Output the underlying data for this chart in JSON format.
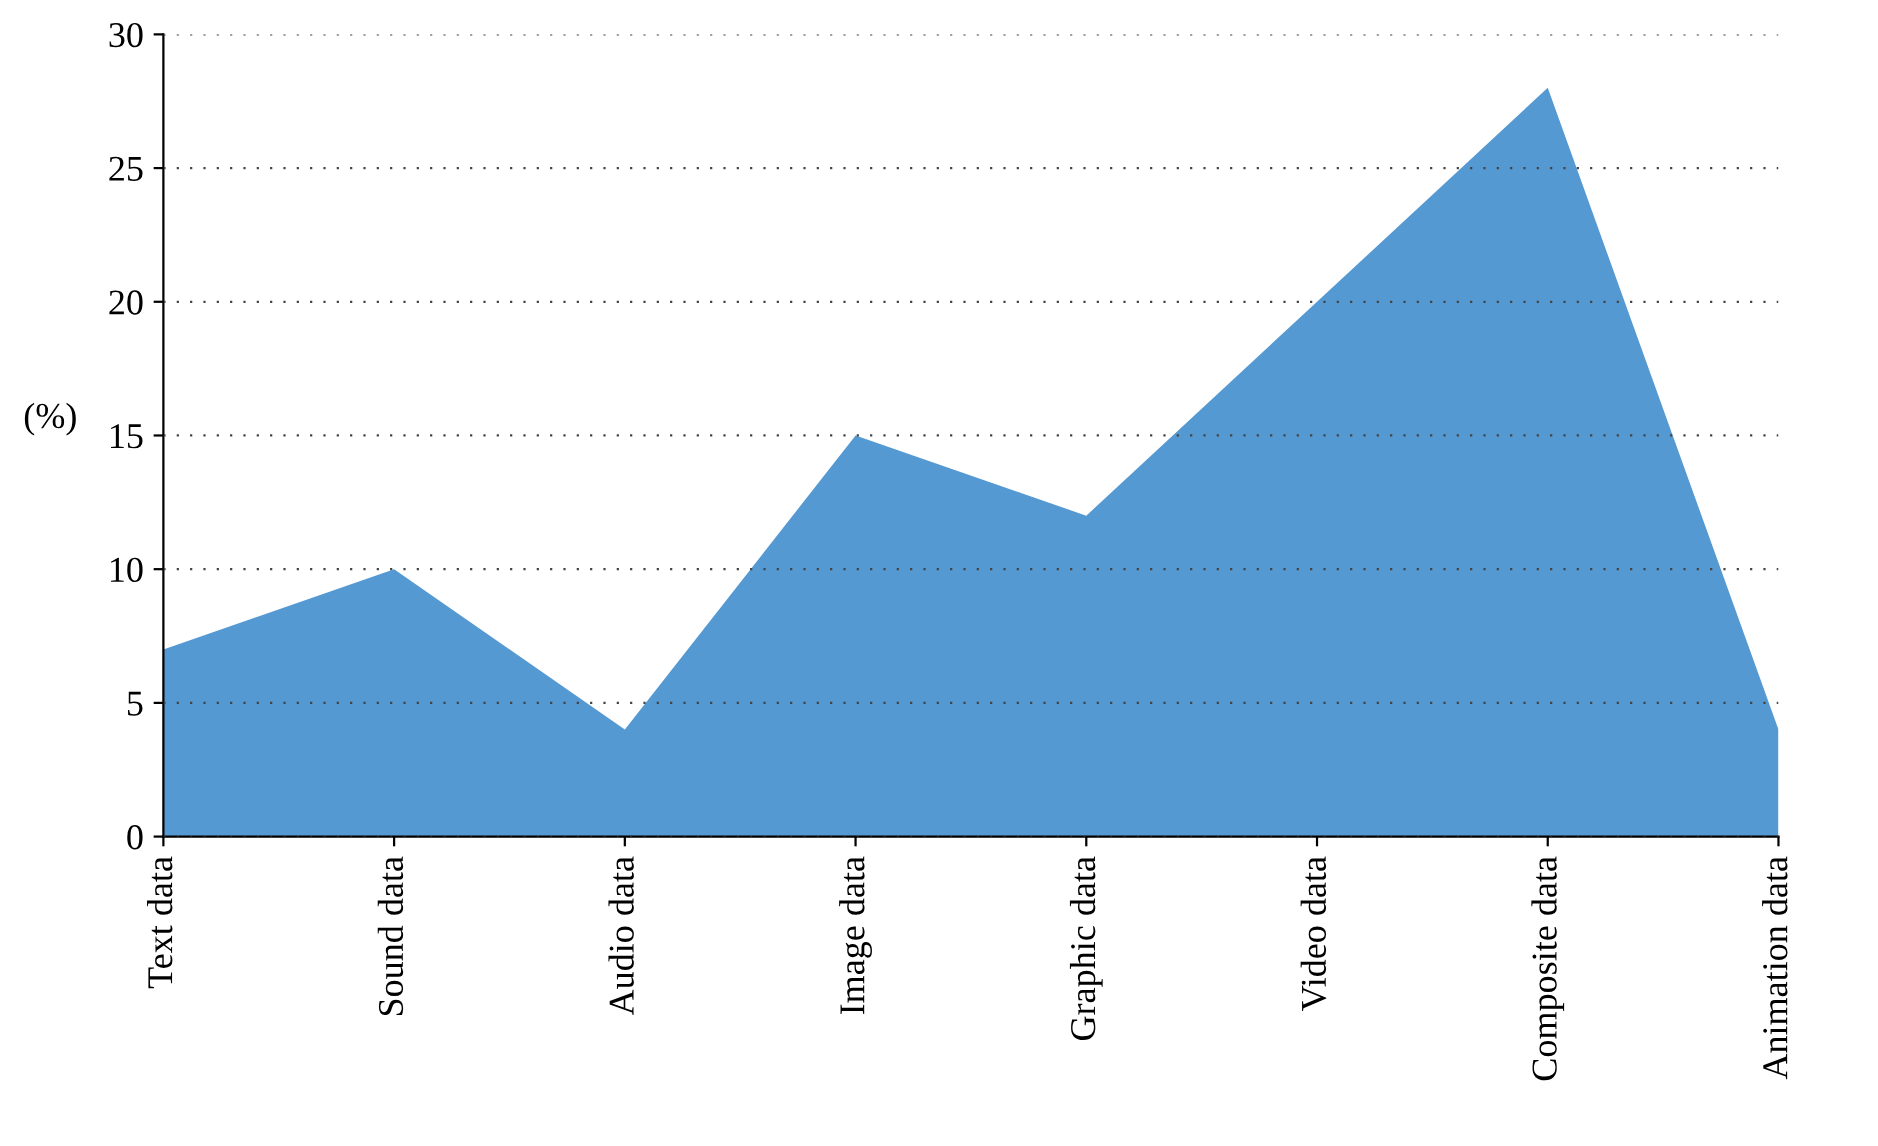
{
  "chart_data": {
    "type": "area",
    "categories": [
      "Text data",
      "Sound data",
      "Audio data",
      "Image data",
      "Graphic data",
      "Video data",
      "Composite data",
      "Animation data"
    ],
    "series": [
      {
        "color": "#5599d3",
        "values": [
          7,
          10,
          4,
          15,
          12,
          20,
          28,
          4
        ]
      }
    ],
    "ylabel": "(%)",
    "ylim": [
      0,
      30
    ],
    "yticks": [
      0,
      5,
      10,
      15,
      20,
      25,
      30
    ],
    "grid": "y",
    "legend": false
  }
}
